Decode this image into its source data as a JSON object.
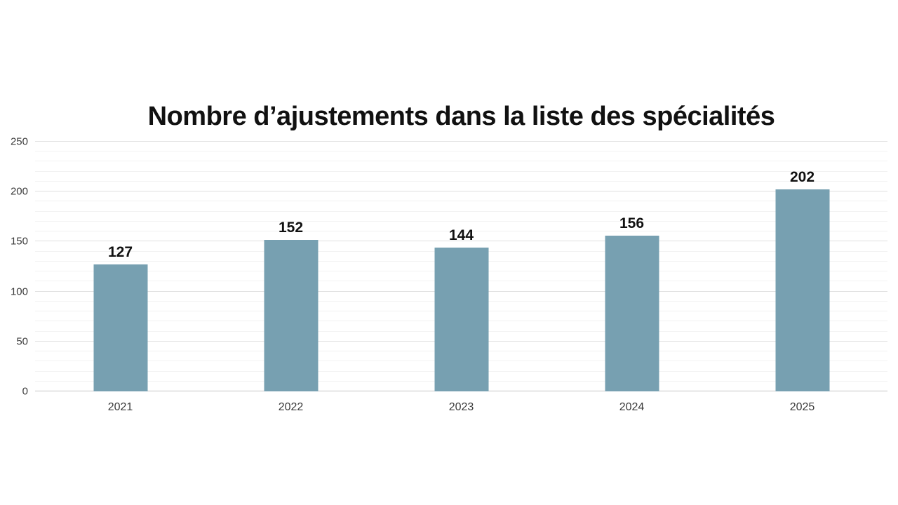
{
  "page": {
    "background_color": "#ffffff"
  },
  "chart_data": {
    "type": "bar",
    "title": "Nombre d’ajustements dans la liste des spécialités",
    "categories": [
      "2021",
      "2022",
      "2023",
      "2024",
      "2025"
    ],
    "values": [
      127,
      152,
      144,
      156,
      202
    ],
    "value_labels": [
      "127",
      "152",
      "144",
      "156",
      "202"
    ],
    "xlabel": "",
    "ylabel": "",
    "ylim": [
      0,
      250
    ],
    "y_major_step": 50,
    "y_minor_step": 10,
    "y_tick_values": [
      0,
      50,
      100,
      150,
      200,
      250
    ],
    "y_tick_labels": [
      "0",
      "50",
      "100",
      "150",
      "200",
      "250"
    ],
    "grid": "horizontal",
    "legend": "none",
    "colors": {
      "bar": "#77a0b1",
      "title": "#111111",
      "value_label": "#111111",
      "y_tick_label": "#3c3c3c",
      "x_tick_label": "#3a3a3a",
      "gridline_major": "#e0e0e0",
      "gridline_minor": "#f2f2f2",
      "baseline": "#c4c4c4"
    }
  }
}
